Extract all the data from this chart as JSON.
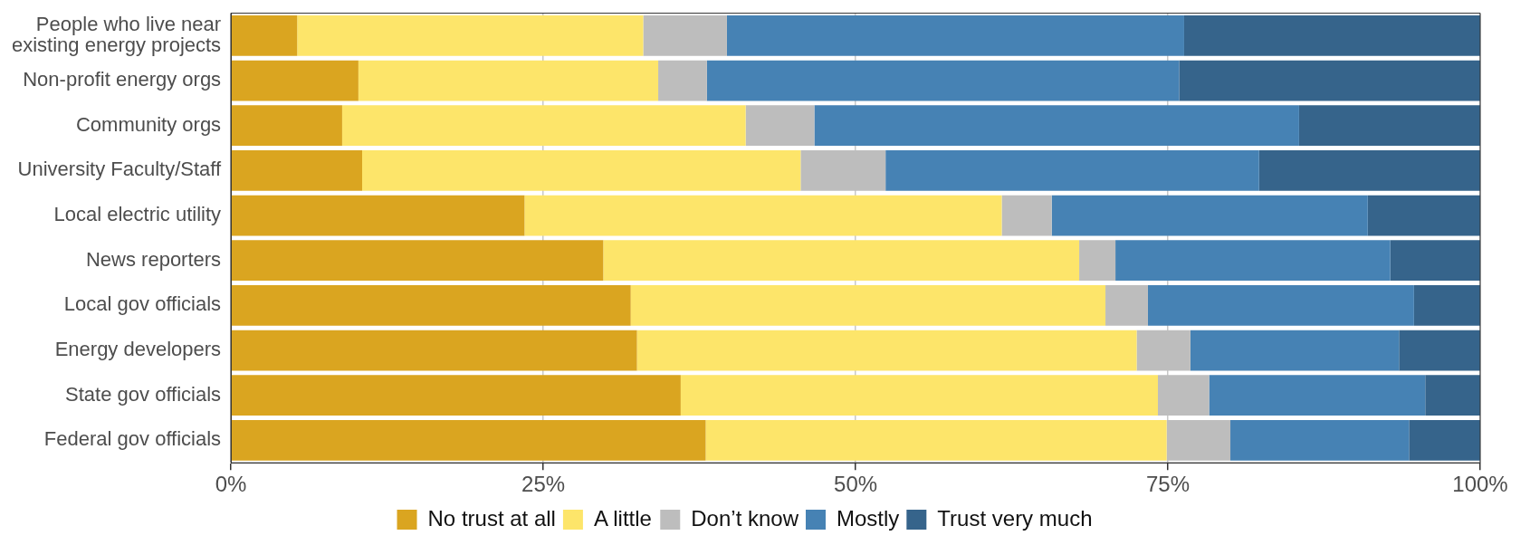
{
  "chart_data": {
    "type": "bar",
    "orientation": "horizontal",
    "stacked": true,
    "categories": [
      "People who live near\nexisting energy projects",
      "Non-profit energy orgs",
      "Community orgs",
      "University Faculty/Staff",
      "Local electric utility",
      "News reporters",
      "Local gov officials",
      "Energy developers",
      "State gov officials",
      "Federal gov officials"
    ],
    "series": [
      {
        "name": "No trust at all",
        "color": "#daa520",
        "values": [
          5.3,
          10.2,
          8.9,
          10.5,
          23.5,
          29.8,
          32.0,
          32.5,
          36.0,
          38.0
        ]
      },
      {
        "name": "A little",
        "color": "#fde56a",
        "values": [
          27.7,
          24.0,
          32.3,
          35.1,
          38.2,
          38.1,
          38.0,
          40.0,
          38.2,
          36.9
        ]
      },
      {
        "name": "Don’t know",
        "color": "#bdbdbd",
        "values": [
          6.7,
          3.9,
          5.5,
          6.8,
          4.0,
          2.9,
          3.4,
          4.3,
          4.1,
          5.1
        ]
      },
      {
        "name": "Mostly",
        "color": "#4682b4",
        "values": [
          36.6,
          37.8,
          38.8,
          29.9,
          25.3,
          22.0,
          21.3,
          16.7,
          17.3,
          14.3
        ]
      },
      {
        "name": "Trust very much",
        "color": "#36648b",
        "values": [
          23.7,
          24.1,
          14.5,
          17.7,
          9.0,
          7.2,
          5.3,
          6.5,
          4.4,
          5.7
        ]
      }
    ],
    "xlim": [
      0,
      100
    ],
    "xticks": [
      {
        "value": 0,
        "label": "0%"
      },
      {
        "value": 25,
        "label": "25%"
      },
      {
        "value": 50,
        "label": "50%"
      },
      {
        "value": 75,
        "label": "75%"
      },
      {
        "value": 100,
        "label": "100%"
      }
    ],
    "grid": "x",
    "legend": "bottom"
  }
}
